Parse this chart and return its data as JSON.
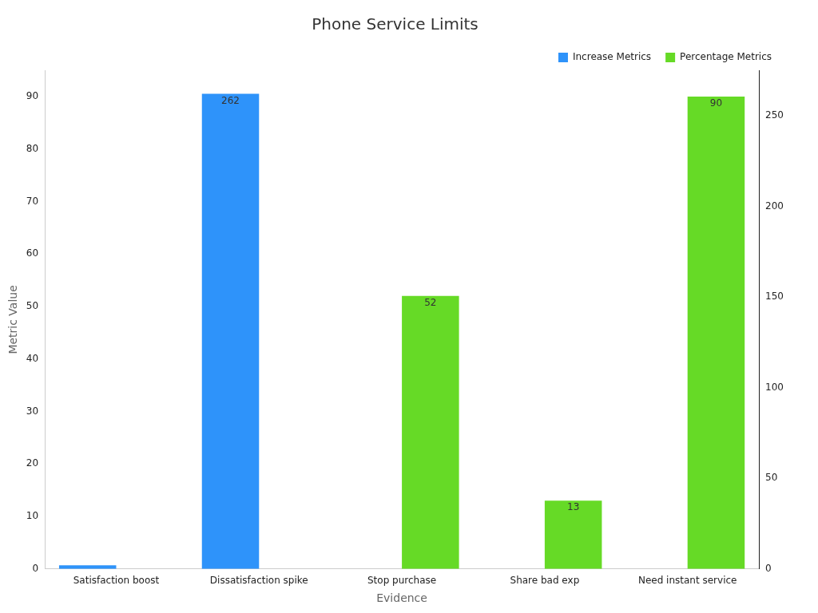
{
  "chart_data": {
    "type": "bar",
    "title": "Phone Service Limits",
    "xlabel": "Evidence",
    "ylabel": "Metric Value",
    "categories": [
      "Satisfaction boost",
      "Dissatisfaction spike",
      "Stop purchase",
      "Share bad exp",
      "Need instant service"
    ],
    "series": [
      {
        "name": "Increase Metrics",
        "color": "#2e93fa",
        "axis": "y2",
        "values": [
          2,
          262,
          null,
          null,
          null
        ],
        "value_labels": [
          null,
          "262",
          null,
          null,
          null
        ]
      },
      {
        "name": "Percentage Metrics",
        "color": "#66da26",
        "values": [
          null,
          null,
          52,
          13,
          90
        ],
        "value_labels": [
          null,
          null,
          "52",
          "13",
          "90"
        ]
      }
    ],
    "ylim": [
      0,
      95
    ],
    "yticks": [
      0,
      10,
      20,
      30,
      40,
      50,
      60,
      70,
      80,
      90
    ],
    "y2lim": [
      0,
      275
    ],
    "y2ticks": [
      0,
      50,
      100,
      150,
      200,
      250
    ],
    "legend": "top right",
    "grid": false
  }
}
